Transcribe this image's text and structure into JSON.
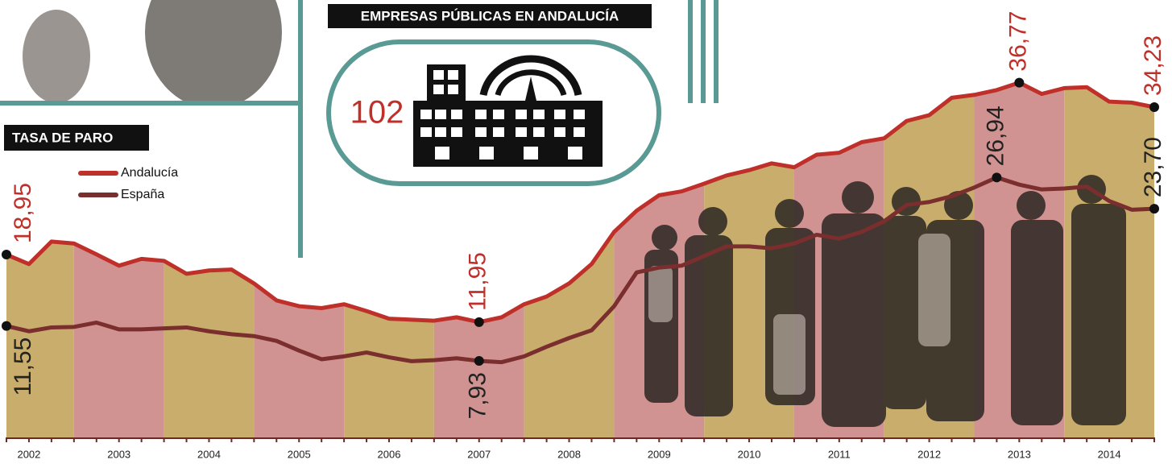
{
  "panel": {
    "title": "EMPRESAS PÚBLICAS EN ANDALUCÍA",
    "value": "102"
  },
  "chart_data": {
    "type": "line",
    "title": "TASA DE PARO",
    "categories": [
      null,
      "2002",
      null,
      null,
      null,
      "2003",
      null,
      null,
      null,
      "2004",
      null,
      null,
      null,
      "2005",
      null,
      null,
      null,
      "2006",
      null,
      null,
      null,
      "2007",
      null,
      null,
      null,
      "2008",
      null,
      null,
      null,
      "2009",
      null,
      null,
      null,
      "2010",
      null,
      null,
      null,
      "2011",
      null,
      null,
      null,
      "2012",
      null,
      null,
      null,
      "2013",
      null,
      null,
      null,
      "2014",
      null,
      null
    ],
    "ylim": [
      0,
      45
    ],
    "band_colors": [
      "#c9ad6c",
      "#d19391"
    ],
    "series": [
      {
        "name": "Andalucía",
        "color": "#c0302a",
        "values": [
          18.95,
          17.97,
          20.3,
          20.1,
          18.97,
          17.8,
          18.5,
          18.3,
          16.96,
          17.3,
          17.4,
          15.96,
          14.2,
          13.6,
          13.4,
          13.8,
          13.1,
          12.3,
          12.2,
          12.1,
          12.45,
          11.95,
          12.45,
          13.8,
          14.6,
          15.96,
          17.97,
          21.3,
          23.5,
          25.1,
          25.5,
          26.3,
          27.15,
          27.7,
          28.4,
          28.0,
          29.3,
          29.5,
          30.6,
          31.0,
          32.8,
          33.4,
          35.2,
          35.5,
          36.0,
          36.77,
          35.6,
          36.2,
          36.3,
          34.8,
          34.7,
          34.23
        ],
        "value_labels": [
          "18,95",
          null,
          null,
          null,
          null,
          null,
          null,
          null,
          null,
          null,
          null,
          null,
          null,
          null,
          null,
          null,
          null,
          null,
          null,
          null,
          null,
          "11,95",
          null,
          null,
          null,
          null,
          null,
          null,
          null,
          null,
          null,
          null,
          null,
          null,
          null,
          null,
          null,
          null,
          null,
          null,
          null,
          null,
          null,
          null,
          null,
          "36,77",
          null,
          null,
          null,
          null,
          null,
          "34,23"
        ]
      },
      {
        "name": "España",
        "color": "#7a2e2e",
        "values": [
          11.55,
          11.0,
          11.4,
          11.45,
          11.9,
          11.2,
          11.2,
          11.3,
          11.4,
          11.0,
          10.7,
          10.5,
          10.0,
          9.0,
          8.1,
          8.4,
          8.8,
          8.3,
          7.9,
          8.0,
          8.2,
          7.93,
          7.8,
          8.4,
          9.4,
          10.3,
          11.1,
          13.6,
          17.1,
          17.6,
          17.8,
          18.8,
          19.8,
          19.8,
          19.6,
          20.1,
          21.0,
          20.6,
          21.3,
          22.4,
          24.1,
          24.4,
          25.0,
          25.9,
          26.94,
          26.2,
          25.7,
          25.8,
          26.0,
          24.5,
          23.6,
          23.7
        ],
        "value_labels": [
          "11,55",
          null,
          null,
          null,
          null,
          null,
          null,
          null,
          null,
          null,
          null,
          null,
          null,
          null,
          null,
          null,
          null,
          null,
          null,
          null,
          null,
          "7,93",
          null,
          null,
          null,
          null,
          null,
          null,
          null,
          null,
          null,
          null,
          null,
          null,
          null,
          null,
          null,
          null,
          null,
          null,
          null,
          null,
          null,
          null,
          "26,94",
          null,
          null,
          null,
          null,
          null,
          null,
          "23,70"
        ]
      }
    ]
  }
}
